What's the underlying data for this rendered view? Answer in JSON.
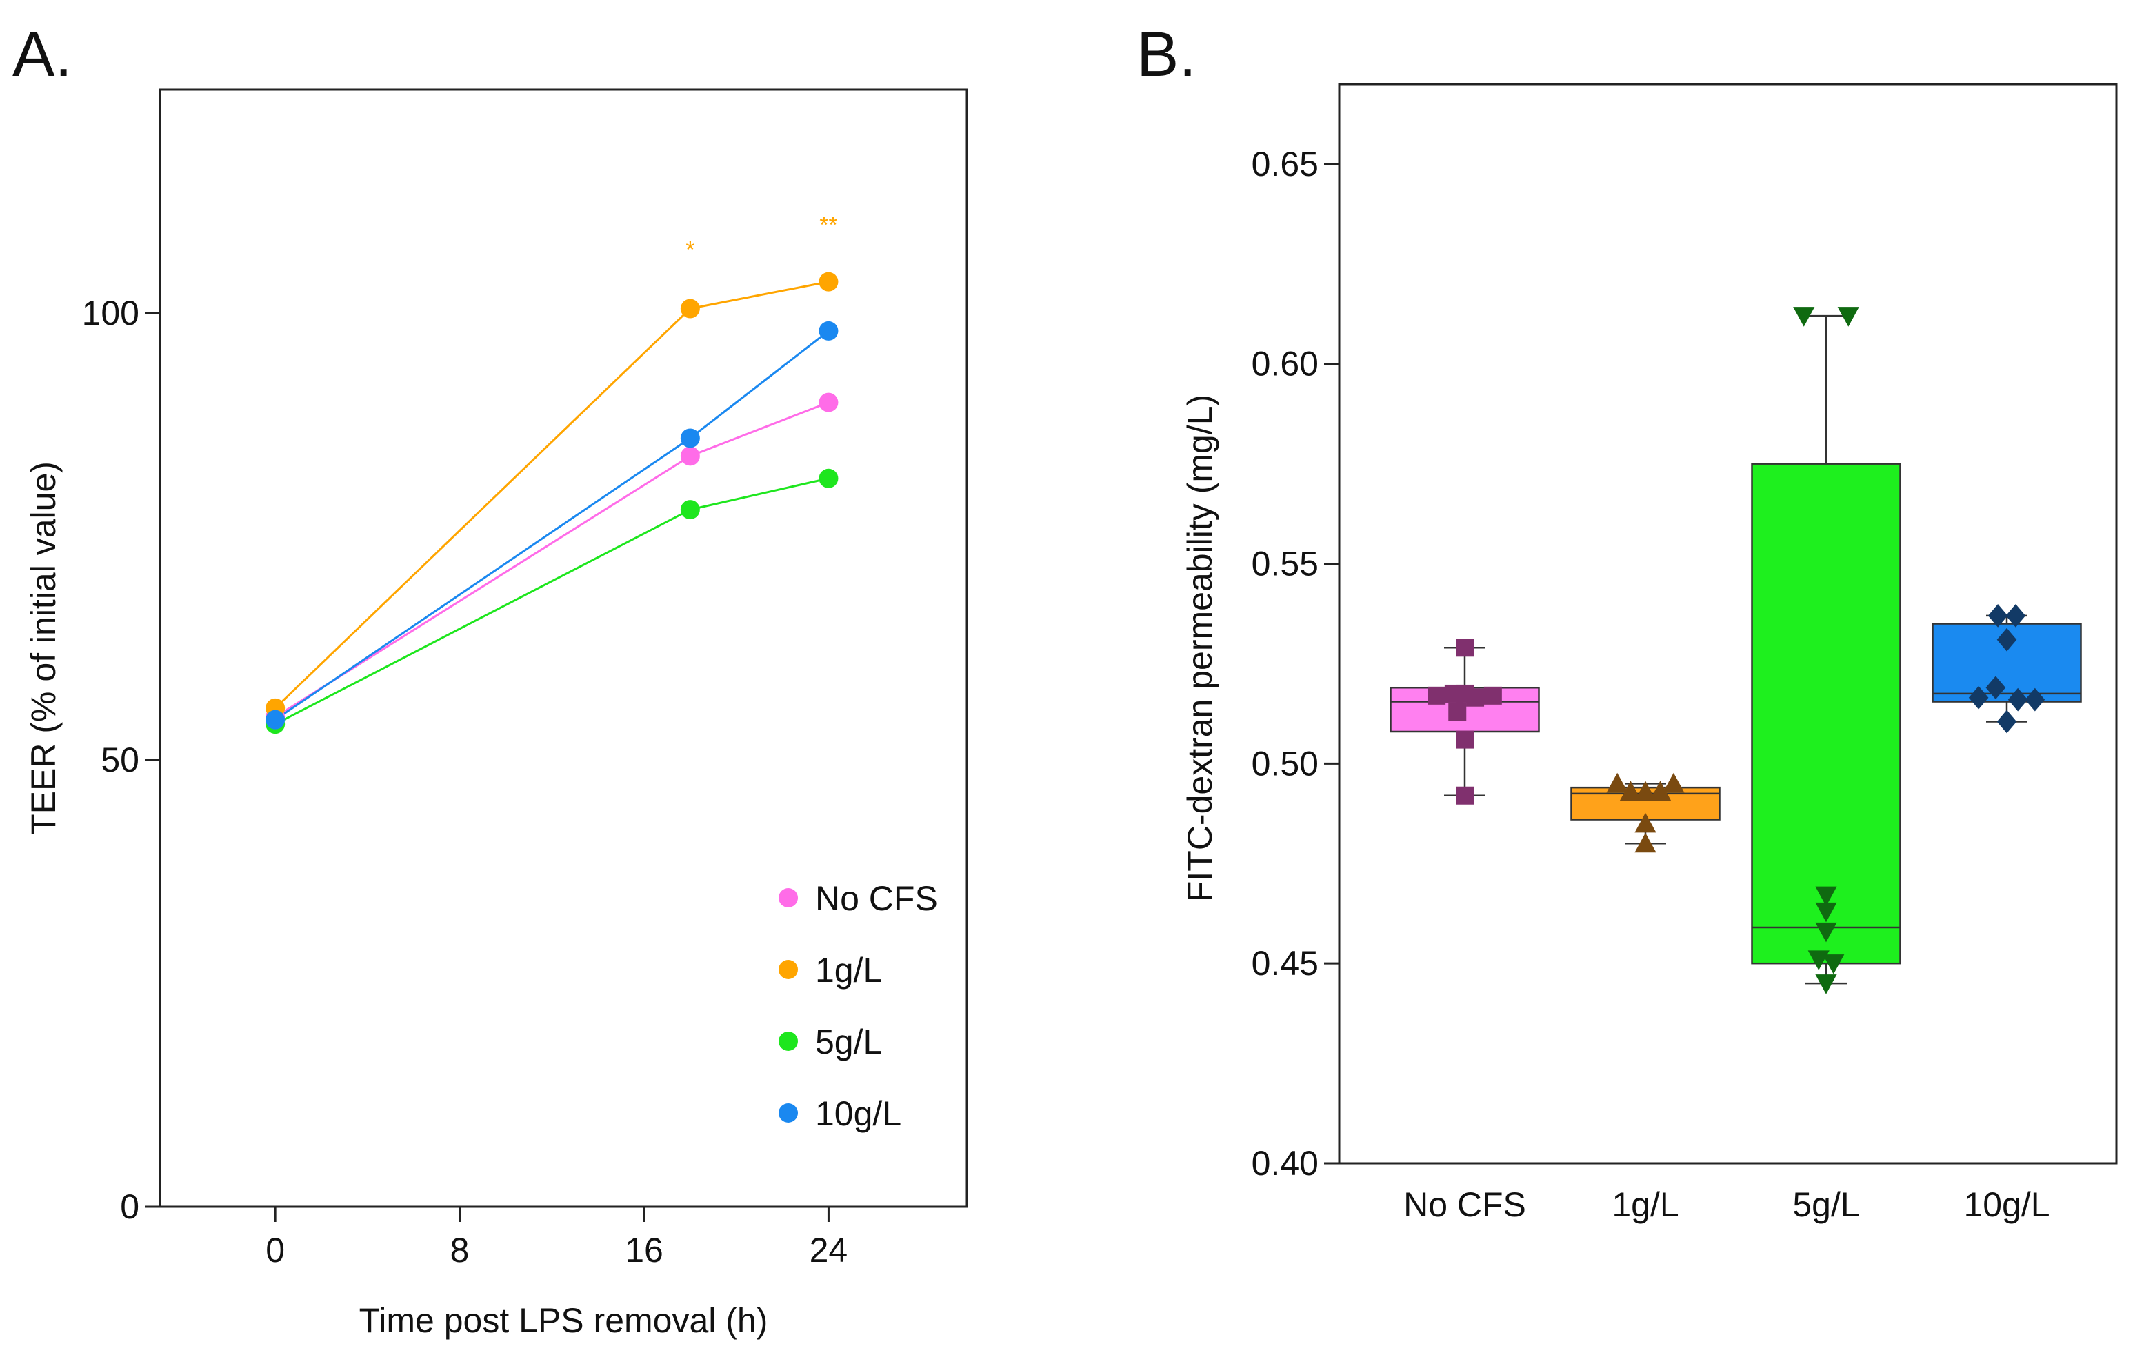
{
  "panel_a_label": "A.",
  "panel_b_label": "B.",
  "chart_data": [
    {
      "type": "line",
      "panel": "A",
      "title": "",
      "xlabel": "Time post LPS removal (h)",
      "ylabel": "TEER (% of initial value)",
      "xlim": [
        -5,
        30
      ],
      "ylim": [
        0,
        125
      ],
      "xticks": [
        0,
        8,
        16,
        24
      ],
      "xtick_labels": [
        "0",
        "8",
        "16",
        "24"
      ],
      "yticks": [
        0,
        50,
        100
      ],
      "ytick_labels": [
        "0",
        "50",
        "100"
      ],
      "x": [
        0,
        18,
        24
      ],
      "series": [
        {
          "name": "No CFS",
          "color": "#ff6ce8",
          "values": [
            54.8,
            84.0,
            90.0
          ]
        },
        {
          "name": "1g/L",
          "color": "#ffa500",
          "values": [
            55.8,
            100.5,
            103.5
          ]
        },
        {
          "name": "5g/L",
          "color": "#1ee61e",
          "values": [
            54.0,
            78.0,
            81.5
          ]
        },
        {
          "name": "10g/L",
          "color": "#1a88f0",
          "values": [
            54.5,
            86.0,
            98.0
          ]
        }
      ],
      "annotations": [
        {
          "text": "*",
          "x": 18,
          "y": 106.2,
          "color": "#ffa500"
        },
        {
          "text": "**",
          "x": 24,
          "y": 109.0,
          "color": "#ffa500"
        }
      ],
      "legend": "bottom-right"
    },
    {
      "type": "box",
      "panel": "B",
      "title": "",
      "xlabel": "",
      "ylabel": "FITC-dextran permeability (mg/L)",
      "ylim": [
        0.4,
        0.67
      ],
      "yticks": [
        0.4,
        0.45,
        0.5,
        0.55,
        0.6,
        0.65
      ],
      "ytick_labels": [
        "0.40",
        "0.45",
        "0.50",
        "0.55",
        "0.60",
        "0.65"
      ],
      "categories": [
        "No CFS",
        "1g/L",
        "5g/L",
        "10g/L"
      ],
      "groups": [
        {
          "name": "No CFS",
          "fill": "#ff80f0",
          "point_color": "#80306e",
          "marker": "square",
          "min": 0.492,
          "q1": 0.508,
          "median": 0.5155,
          "q3": 0.519,
          "max": 0.529,
          "points": [
            0.517,
            0.5175,
            0.513,
            0.5165,
            0.517,
            0.506,
            0.5175,
            0.529,
            0.492
          ],
          "offsets": [
            -0.38,
            -0.15,
            -0.1,
            0.14,
            0.38,
            0.0,
            0.0,
            0.0,
            0.0
          ]
        },
        {
          "name": "1g/L",
          "fill": "#ffa21a",
          "point_color": "#7a4a10",
          "marker": "triangle-up",
          "min": 0.48,
          "q1": 0.486,
          "median": 0.4925,
          "q3": 0.494,
          "max": 0.495,
          "points": [
            0.495,
            0.493,
            0.493,
            0.493,
            0.495,
            0.485,
            0.48
          ],
          "offsets": [
            -0.38,
            -0.2,
            0.0,
            0.2,
            0.38,
            0.0,
            0.0
          ]
        },
        {
          "name": "5g/L",
          "fill": "#1ef01e",
          "point_color": "#0f6a10",
          "marker": "triangle-down",
          "min": 0.445,
          "q1": 0.45,
          "median": 0.459,
          "q3": 0.575,
          "max": 0.612,
          "points": [
            0.612,
            0.612,
            0.467,
            0.463,
            0.458,
            0.451,
            0.45,
            0.445
          ],
          "offsets": [
            -0.3,
            0.3,
            0.0,
            0.0,
            0.0,
            -0.1,
            0.1,
            0.0
          ]
        },
        {
          "name": "10g/L",
          "fill": "#1a8af0",
          "point_color": "#123a66",
          "marker": "diamond",
          "min": 0.5105,
          "q1": 0.5155,
          "median": 0.5175,
          "q3": 0.535,
          "max": 0.537,
          "points": [
            0.537,
            0.537,
            0.531,
            0.519,
            0.5165,
            0.516,
            0.516,
            0.5105
          ],
          "offsets": [
            -0.12,
            0.12,
            0.0,
            -0.15,
            -0.38,
            0.15,
            0.38,
            0.0
          ]
        }
      ]
    }
  ]
}
